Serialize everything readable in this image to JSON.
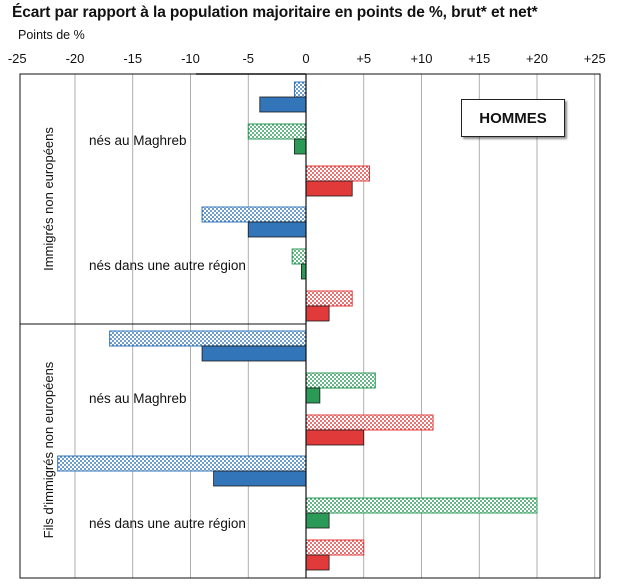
{
  "title": "Écart par rapport à la population majoritaire en points de %, brut* et net*",
  "unit_label": "Points de %",
  "badge": "HOMMES",
  "colors": {
    "blue": "#3275b8",
    "green": "#2b9a57",
    "red": "#e03a3a",
    "frame": "#111111",
    "grid": "#9a9a9a"
  },
  "chart_data": {
    "type": "bar",
    "orientation": "horizontal",
    "xlim": [
      -25,
      25
    ],
    "xticks": [
      "-25",
      "-20",
      "-15",
      "-10",
      "-5",
      "0",
      "+5",
      "+10",
      "+15",
      "+20",
      "+25"
    ],
    "tick_values": [
      -25,
      -20,
      -15,
      -10,
      -5,
      0,
      5,
      10,
      15,
      20,
      25
    ],
    "groups": [
      {
        "label": "Immigrés non européens",
        "categories": [
          {
            "label": "nés au Maghreb",
            "pairs": [
              {
                "color": "blue",
                "brut": -1,
                "net": -4
              },
              {
                "color": "green",
                "brut": -5,
                "net": -1
              },
              {
                "color": "red",
                "brut": 5.5,
                "net": 4
              }
            ]
          },
          {
            "label": "nés dans une autre région",
            "pairs": [
              {
                "color": "blue",
                "brut": -9,
                "net": -5
              },
              {
                "color": "green",
                "brut": -1.2,
                "net": -0.4
              },
              {
                "color": "red",
                "brut": 4,
                "net": 2
              }
            ]
          }
        ]
      },
      {
        "label": "Fils d'immigrés non européens",
        "categories": [
          {
            "label": "nés au Maghreb",
            "pairs": [
              {
                "color": "blue",
                "brut": -17,
                "net": -9
              },
              {
                "color": "green",
                "brut": 6,
                "net": 1.2
              },
              {
                "color": "red",
                "brut": 11,
                "net": 5
              }
            ]
          },
          {
            "label": "nés dans une autre région",
            "pairs": [
              {
                "color": "blue",
                "brut": -21.5,
                "net": -8
              },
              {
                "color": "green",
                "brut": 20,
                "net": 2
              },
              {
                "color": "red",
                "brut": 5,
                "net": 2
              }
            ]
          }
        ]
      }
    ]
  }
}
